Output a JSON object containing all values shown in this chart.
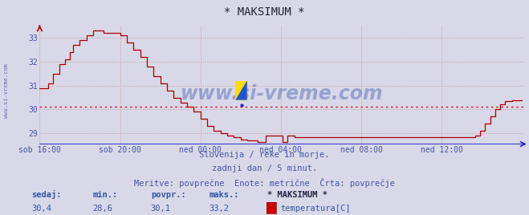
{
  "title": "* MAKSIMUM *",
  "background_color": "#d8d8e8",
  "plot_bg_color": "#d8d8e8",
  "line_color": "#aa0000",
  "avg_line_color": "#dd0000",
  "avg_line_style": "dotted",
  "avg_value": 30.1,
  "ylim": [
    28.55,
    33.55
  ],
  "yticks": [
    29,
    30,
    31,
    32,
    33
  ],
  "xlabel_color": "#4455aa",
  "ylabel_color": "#4455aa",
  "grid_color": "#cc9999",
  "axis_color": "#2222cc",
  "x_labels": [
    "sob 16:00",
    "sob 20:00",
    "ned 00:00",
    "ned 04:00",
    "ned 08:00",
    "ned 12:00"
  ],
  "x_tick_positions": [
    0,
    48,
    96,
    144,
    192,
    240
  ],
  "subtitle1": "Slovenija / reke in morje.",
  "subtitle2": "zadnji dan / 5 minut.",
  "subtitle3": "Meritve: povprečne  Enote: metrične  Črta: povprečje",
  "footer_labels": [
    "sedaj:",
    "min.:",
    "povpr.:",
    "maks.:"
  ],
  "footer_values": [
    "30,4",
    "28,6",
    "30,1",
    "33,2"
  ],
  "footer_series_label": "* MAKSIMUM *",
  "footer_legend_label": "temperatura[C]",
  "footer_legend_color": "#cc0000",
  "watermark_text": "www.si-vreme.com",
  "watermark_color": "#3355aa",
  "left_label": "www.si-vreme.com",
  "title_fontsize": 10,
  "subtitle_fontsize": 7.5,
  "footer_fontsize": 7.5,
  "tick_fontsize": 7,
  "n_points": 289
}
